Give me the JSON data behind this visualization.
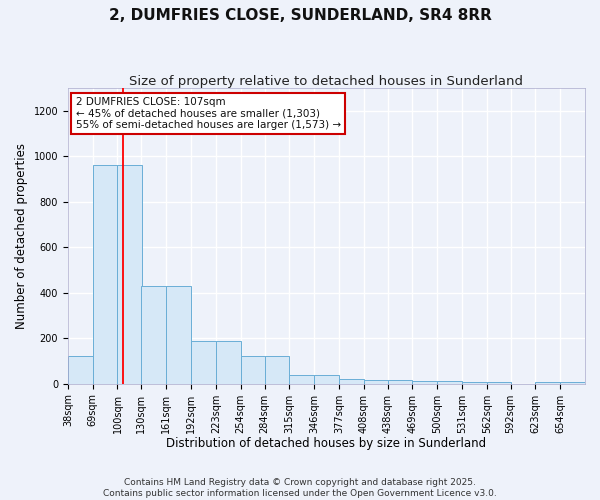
{
  "title": "2, DUMFRIES CLOSE, SUNDERLAND, SR4 8RR",
  "subtitle": "Size of property relative to detached houses in Sunderland",
  "xlabel": "Distribution of detached houses by size in Sunderland",
  "ylabel": "Number of detached properties",
  "bins": [
    38,
    69,
    100,
    130,
    161,
    192,
    223,
    254,
    284,
    315,
    346,
    377,
    408,
    438,
    469,
    500,
    531,
    562,
    592,
    623,
    654
  ],
  "counts": [
    120,
    960,
    960,
    430,
    430,
    190,
    190,
    120,
    120,
    40,
    40,
    20,
    15,
    15,
    10,
    10,
    8,
    8,
    0,
    8,
    8
  ],
  "bar_color": "#d6e8f7",
  "bar_edge_color": "#6aaed6",
  "red_line_x": 107,
  "ylim": [
    0,
    1300
  ],
  "yticks": [
    0,
    200,
    400,
    600,
    800,
    1000,
    1200
  ],
  "annotation_line1": "2 DUMFRIES CLOSE: 107sqm",
  "annotation_line2": "← 45% of detached houses are smaller (1,303)",
  "annotation_line3": "55% of semi-detached houses are larger (1,573) →",
  "annotation_box_color": "#ffffff",
  "annotation_box_edge": "#cc0000",
  "footer1": "Contains HM Land Registry data © Crown copyright and database right 2025.",
  "footer2": "Contains public sector information licensed under the Open Government Licence v3.0.",
  "bg_color": "#eef2fa",
  "plot_bg_color": "#eef2fa",
  "grid_color": "#ffffff",
  "title_fontsize": 11,
  "subtitle_fontsize": 9.5,
  "axis_label_fontsize": 8.5,
  "tick_fontsize": 7,
  "annotation_fontsize": 7.5,
  "footer_fontsize": 6.5
}
